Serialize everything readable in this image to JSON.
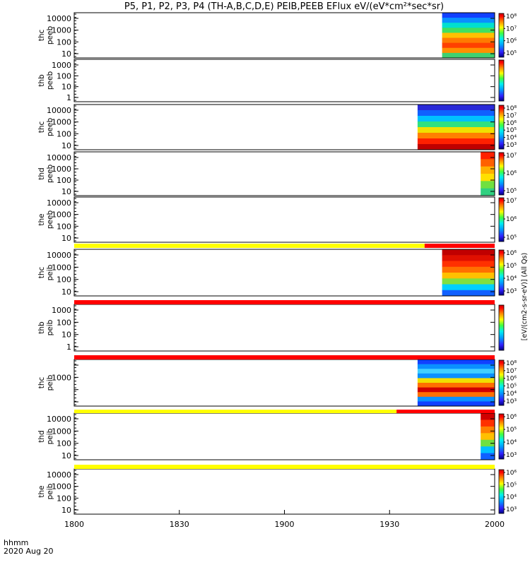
{
  "chart_data": {
    "type": "heatmap",
    "title": "P5, P1, P2, P3, P4 (TH-A,B,C,D,E) PEIB,PEEB EFlux eV/(eV*cm²*sec*sr)",
    "x_ticks": [
      "1800",
      "1830",
      "1900",
      "1930",
      "2000"
    ],
    "footer_label": "hhmm",
    "footer_date": "2020 Aug 20",
    "colorbar_unit": "[eV/(cm2-s-sr-eV)] (All Qs)",
    "panels": [
      {
        "label_top": "thc",
        "label_bottom": "peeb",
        "y_ticks": [
          "10000",
          "1000",
          "100",
          "10"
        ],
        "cb_ticks": [
          "10⁸",
          "10⁷",
          "10⁶",
          "10⁵"
        ],
        "data_start_hhmm": "1945",
        "data_end_hhmm": "2000",
        "fill_colors": [
          "#1240ff",
          "#0a90ff",
          "#00e0d0",
          "#40e060",
          "#ffc000",
          "#ff7a00",
          "#ff4000",
          "#ff9000",
          "#40d070"
        ]
      },
      {
        "label_top": "thb",
        "label_bottom": "peeb",
        "y_ticks": [
          "1000",
          "100",
          "10",
          "1"
        ],
        "cb_ticks": [],
        "data_start_hhmm": "",
        "data_end_hhmm": "",
        "fill_colors": []
      },
      {
        "label_top": "thc",
        "label_bottom": "peeb",
        "y_ticks": [
          "10000",
          "1000",
          "100",
          "10"
        ],
        "cb_ticks": [
          "10⁸",
          "10⁷",
          "10⁶",
          "10⁵",
          "10⁴",
          "10³"
        ],
        "data_start_hhmm": "1938",
        "data_end_hhmm": "2000",
        "fill_colors": [
          "#2a2ad8",
          "#1060ff",
          "#00c0ff",
          "#30e080",
          "#f0e000",
          "#ff8000",
          "#ff2000",
          "#c00000"
        ]
      },
      {
        "label_top": "thd",
        "label_bottom": "peeb",
        "y_ticks": [
          "10000",
          "1000",
          "100",
          "10"
        ],
        "cb_ticks": [
          "10⁷",
          "10⁶",
          "10⁵"
        ],
        "data_start_hhmm": "1956",
        "data_end_hhmm": "2000",
        "fill_colors": [
          "#ff2000",
          "#ff6000",
          "#ffb000",
          "#ffe000",
          "#70e040",
          "#30d080"
        ]
      },
      {
        "label_top": "the",
        "label_bottom": "peeb",
        "y_ticks": [
          "10000",
          "1000",
          "100",
          "10"
        ],
        "cb_ticks": [
          "10⁷",
          "10⁶",
          "10⁵"
        ],
        "data_start_hhmm": "",
        "data_end_hhmm": "",
        "fill_colors": []
      },
      {
        "label_top": "thc",
        "label_bottom": "peib",
        "y_ticks": [
          "10000",
          "1000",
          "100",
          "10"
        ],
        "cb_ticks": [
          "10⁶",
          "10⁵",
          "10⁴",
          "10³"
        ],
        "data_start_hhmm": "1945",
        "data_end_hhmm": "2000",
        "fill_colors": [
          "#c00000",
          "#e01000",
          "#ff3000",
          "#ff7000",
          "#ffc000",
          "#80e040",
          "#00d0ff",
          "#1060ff"
        ]
      },
      {
        "label_top": "thb",
        "label_bottom": "peib",
        "y_ticks": [
          "1000",
          "100",
          "10",
          "1"
        ],
        "cb_ticks": [],
        "data_start_hhmm": "",
        "data_end_hhmm": "",
        "fill_colors": []
      },
      {
        "label_top": "thc",
        "label_bottom": "peib",
        "y_ticks": [
          "",
          "1000",
          "",
          ""
        ],
        "cb_ticks": [
          "10⁸",
          "10⁷",
          "10⁶",
          "10⁵",
          "10⁴",
          "10³"
        ],
        "data_start_hhmm": "1938",
        "data_end_hhmm": "2000",
        "fill_colors": [
          "#1240ff",
          "#0a90ff",
          "#40d0ff",
          "#0a90ff",
          "#f0e000",
          "#ff7000",
          "#d00000",
          "#ff7000",
          "#0a90ff",
          "#1240ff"
        ]
      },
      {
        "label_top": "thd",
        "label_bottom": "peib",
        "y_ticks": [
          "10000",
          "1000",
          "100",
          "10"
        ],
        "cb_ticks": [
          "10⁶",
          "10⁵",
          "10⁴",
          "10³"
        ],
        "data_start_hhmm": "1956",
        "data_end_hhmm": "2000",
        "fill_colors": [
          "#d00000",
          "#ff3000",
          "#ff8000",
          "#ffc000",
          "#70e040",
          "#00c0ff",
          "#1060ff"
        ]
      },
      {
        "label_top": "the",
        "label_bottom": "peib",
        "y_ticks": [
          "10000",
          "1000",
          "100",
          "10"
        ],
        "cb_ticks": [
          "10⁶",
          "10⁵",
          "10⁴",
          "10³"
        ],
        "data_start_hhmm": "",
        "data_end_hhmm": "",
        "fill_colors": []
      }
    ],
    "status_bars": [
      {
        "after_panel": 4,
        "segments": [
          {
            "from_hhmm": "1800",
            "to_hhmm": "1940",
            "color": "#ffff00"
          },
          {
            "from_hhmm": "1940",
            "to_hhmm": "2000",
            "color": "#ff0000"
          }
        ]
      },
      {
        "after_panel": 5,
        "segments": [
          {
            "from_hhmm": "1800",
            "to_hhmm": "2000",
            "color": "#ff0000"
          }
        ]
      },
      {
        "after_panel": 6,
        "segments": [
          {
            "from_hhmm": "1800",
            "to_hhmm": "2000",
            "color": "#ff0000"
          }
        ]
      },
      {
        "after_panel": 7,
        "segments": [
          {
            "from_hhmm": "1800",
            "to_hhmm": "1932",
            "color": "#ffff00"
          },
          {
            "from_hhmm": "1932",
            "to_hhmm": "2000",
            "color": "#ff0000"
          }
        ]
      },
      {
        "after_panel": 8,
        "segments": [
          {
            "from_hhmm": "1800",
            "to_hhmm": "2000",
            "color": "#ffff00"
          }
        ]
      }
    ]
  }
}
